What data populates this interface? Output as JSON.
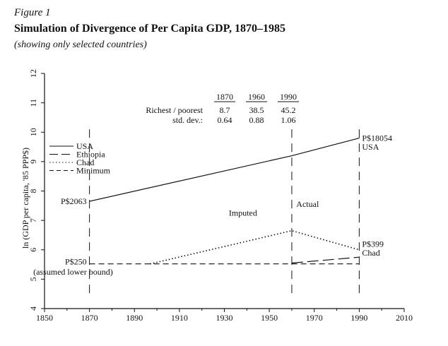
{
  "figure_label": "Figure 1",
  "title": "Simulation of Divergence of Per Capita GDP, 1870–1985",
  "subtitle": "(showing only selected countries)",
  "colors": {
    "ink": "#111111",
    "background": "#ffffff"
  },
  "chart_data": {
    "type": "line",
    "ylabel": "ln (GDP per capita, '85 PPP$)",
    "xlim": [
      1850,
      2010
    ],
    "ylim": [
      4,
      12
    ],
    "x_ticks": [
      1850,
      1870,
      1890,
      1910,
      1930,
      1950,
      1970,
      1990,
      2010
    ],
    "y_ticks": [
      4,
      5,
      6,
      7,
      8,
      9,
      10,
      11,
      12
    ],
    "series": [
      {
        "name": "USA",
        "style": "solid",
        "points": [
          [
            1870,
            7.65
          ],
          [
            1960,
            9.2
          ],
          [
            1990,
            9.8
          ]
        ]
      },
      {
        "name": "Ethiopia",
        "style": "long-dash",
        "points": [
          [
            1960,
            5.55
          ],
          [
            1990,
            5.75
          ]
        ]
      },
      {
        "name": "Chad",
        "style": "dotted",
        "points": [
          [
            1897,
            5.52
          ],
          [
            1960,
            6.65
          ],
          [
            1990,
            6.0
          ]
        ]
      },
      {
        "name": "Minimum",
        "style": "dash",
        "points": [
          [
            1870,
            5.52
          ],
          [
            1990,
            5.52
          ]
        ]
      }
    ],
    "vertical_lines": [
      1870,
      1960,
      1990
    ],
    "legend": {
      "position": "top-left",
      "entries": [
        "USA",
        "Ethiopia",
        "Chad",
        "Minimum"
      ]
    },
    "annotations": [
      {
        "text": "P$2063",
        "x": 1870,
        "y": 7.65,
        "anchor": "end"
      },
      {
        "text": "P$18054",
        "x": 1990,
        "y": 9.8,
        "anchor": "start"
      },
      {
        "text": "USA",
        "x": 1990,
        "y": 9.5,
        "anchor": "start"
      },
      {
        "text": "P$399",
        "x": 1990,
        "y": 6.2,
        "anchor": "start"
      },
      {
        "text": "Chad",
        "x": 1990,
        "y": 5.9,
        "anchor": "start"
      },
      {
        "text": "P$250",
        "x": 1870,
        "y": 5.6,
        "anchor": "end"
      },
      {
        "text": "(assumed lower bound)",
        "x": 1845,
        "y": 5.25,
        "anchor": "start"
      },
      {
        "text": "Imputed",
        "x": 1932,
        "y": 7.25,
        "anchor": "start"
      },
      {
        "text": "Actual",
        "x": 1962,
        "y": 7.55,
        "anchor": "start"
      }
    ],
    "inset_table": {
      "columns": [
        "1870",
        "1960",
        "1990"
      ],
      "rows": [
        {
          "label": "Richest / poorest",
          "values": [
            "8.7",
            "38.5",
            "45.2"
          ]
        },
        {
          "label": "std. dev.:",
          "values": [
            "0.64",
            "0.88",
            "1.06"
          ]
        }
      ]
    }
  }
}
